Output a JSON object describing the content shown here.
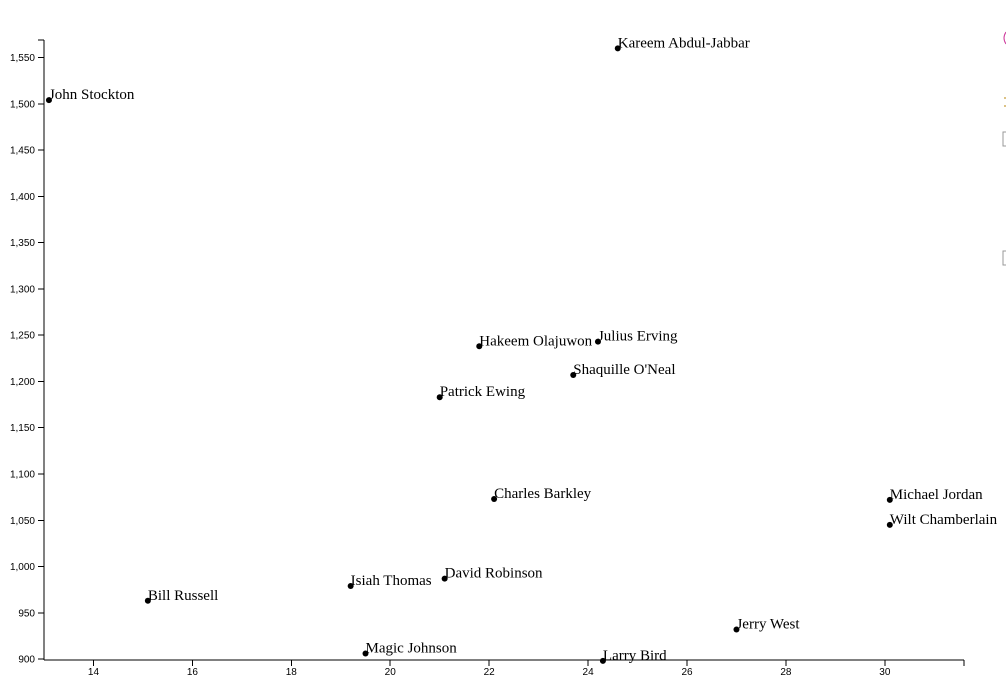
{
  "chart_data": {
    "type": "scatter",
    "title": "",
    "xlabel": "",
    "ylabel": "",
    "xlim": [
      13,
      31.6
    ],
    "ylim": [
      899,
      1569
    ],
    "grid": false,
    "x_ticks": [
      14,
      16,
      18,
      20,
      22,
      24,
      26,
      28,
      30
    ],
    "x_tick_labels": [
      "14",
      "16",
      "18",
      "20",
      "22",
      "24",
      "26",
      "28",
      "30"
    ],
    "y_ticks": [
      900,
      950,
      1000,
      1050,
      1100,
      1150,
      1200,
      1250,
      1300,
      1350,
      1400,
      1450,
      1500,
      1550
    ],
    "y_tick_labels": [
      "900",
      "950",
      "1,000",
      "1,050",
      "1,100",
      "1,150",
      "1,200",
      "1,250",
      "1,300",
      "1,350",
      "1,400",
      "1,450",
      "1,500",
      "1,550"
    ],
    "points": [
      {
        "label": "Kareem Abdul-Jabbar",
        "x": 24.6,
        "y": 1560
      },
      {
        "label": "John Stockton",
        "x": 13.1,
        "y": 1504
      },
      {
        "label": "Hakeem Olajuwon",
        "x": 21.8,
        "y": 1238
      },
      {
        "label": "Julius Erving",
        "x": 24.2,
        "y": 1243
      },
      {
        "label": "Shaquille O'Neal",
        "x": 23.7,
        "y": 1207
      },
      {
        "label": "Patrick Ewing",
        "x": 21.0,
        "y": 1183
      },
      {
        "label": "Charles Barkley",
        "x": 22.1,
        "y": 1073
      },
      {
        "label": "Michael Jordan",
        "x": 30.1,
        "y": 1072
      },
      {
        "label": "Wilt Chamberlain",
        "x": 30.1,
        "y": 1045
      },
      {
        "label": "David Robinson",
        "x": 21.1,
        "y": 987
      },
      {
        "label": "Isiah Thomas",
        "x": 19.2,
        "y": 979
      },
      {
        "label": "Bill Russell",
        "x": 15.1,
        "y": 963
      },
      {
        "label": "Jerry West",
        "x": 27.0,
        "y": 932
      },
      {
        "label": "Magic Johnson",
        "x": 19.5,
        "y": 906
      },
      {
        "label": "Larry Bird",
        "x": 24.3,
        "y": 898
      }
    ]
  },
  "colors": {
    "point": "#000000",
    "axis": "#000000",
    "edge_mark_1": "#cc3399",
    "edge_mark_2": "#999999"
  }
}
